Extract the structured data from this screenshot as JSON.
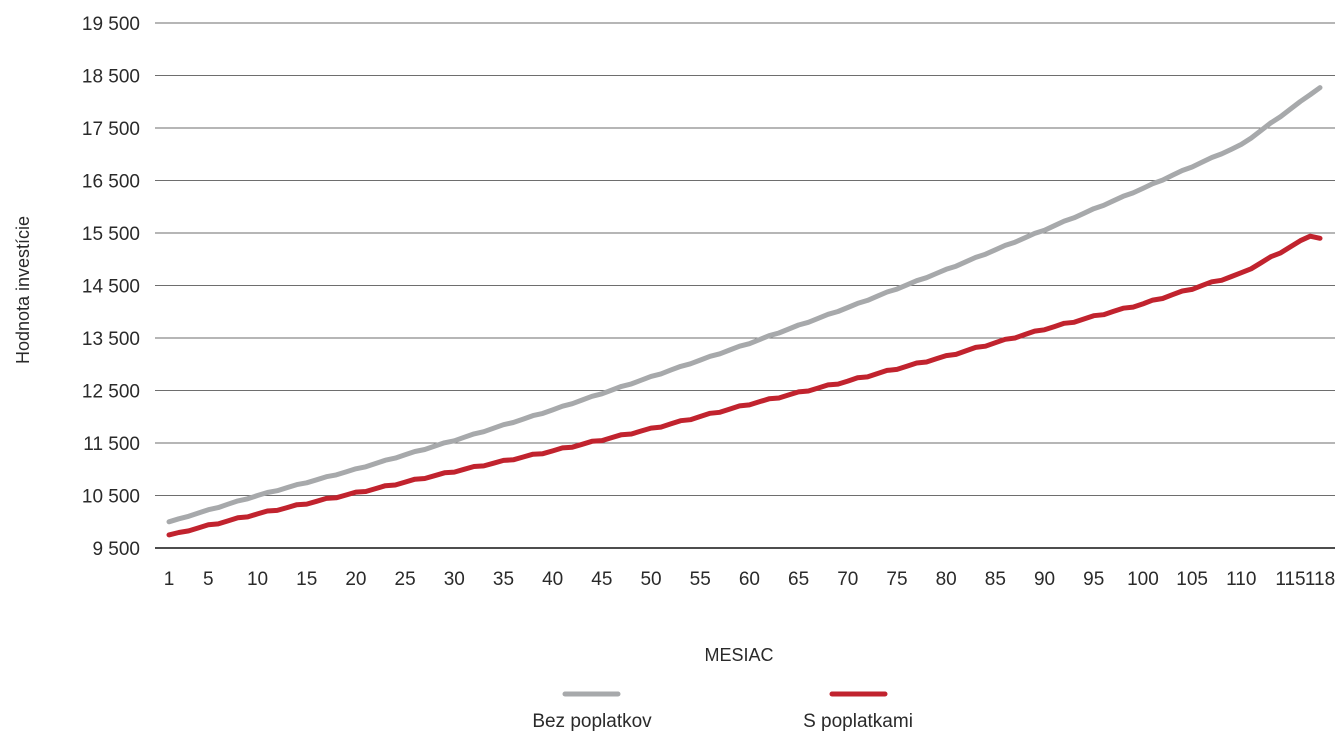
{
  "chart_data": {
    "type": "line",
    "title": "",
    "xlabel": "MESIAC",
    "ylabel": "Hodnota investície",
    "x_range": [
      1,
      118
    ],
    "ylim": [
      9500,
      19500
    ],
    "y_ticks": [
      9500,
      10500,
      11500,
      12500,
      13500,
      14500,
      15500,
      16500,
      17500,
      18500,
      19500
    ],
    "y_tick_labels": [
      "9 500",
      "10 500",
      "11 500",
      "12 500",
      "13 500",
      "14 500",
      "15 500",
      "16 500",
      "17 500",
      "18 500",
      "19 500"
    ],
    "x_ticks": [
      1,
      5,
      10,
      15,
      20,
      25,
      30,
      35,
      40,
      45,
      50,
      55,
      60,
      65,
      70,
      75,
      80,
      85,
      90,
      95,
      100,
      105,
      110,
      115,
      118
    ],
    "x_tick_labels": [
      "1",
      "5",
      "10",
      "15",
      "20",
      "25",
      "30",
      "35",
      "40",
      "45",
      "50",
      "55",
      "60",
      "65",
      "70",
      "75",
      "80",
      "85",
      "90",
      "95",
      "100",
      "105",
      "110",
      "115",
      "118"
    ],
    "grid": "horizontal",
    "legend_position": "bottom-center",
    "series": [
      {
        "name": "Bez poplatkov",
        "color": "#a7a9ab",
        "points": [
          [
            1,
            10000
          ],
          [
            10,
            10500
          ],
          [
            20,
            11000
          ],
          [
            30,
            11550
          ],
          [
            40,
            12130
          ],
          [
            50,
            12760
          ],
          [
            60,
            13400
          ],
          [
            70,
            14080
          ],
          [
            80,
            14800
          ],
          [
            90,
            15560
          ],
          [
            100,
            16350
          ],
          [
            110,
            17180
          ],
          [
            118,
            18270
          ]
        ]
      },
      {
        "name": "S poplatkami",
        "color": "#c1232e",
        "points": [
          [
            1,
            9750
          ],
          [
            10,
            10150
          ],
          [
            20,
            10550
          ],
          [
            30,
            10960
          ],
          [
            40,
            11350
          ],
          [
            50,
            11770
          ],
          [
            60,
            12240
          ],
          [
            70,
            12680
          ],
          [
            80,
            13150
          ],
          [
            90,
            13670
          ],
          [
            100,
            14150
          ],
          [
            110,
            14730
          ],
          [
            117,
            15440
          ],
          [
            118,
            15400
          ]
        ]
      }
    ]
  }
}
